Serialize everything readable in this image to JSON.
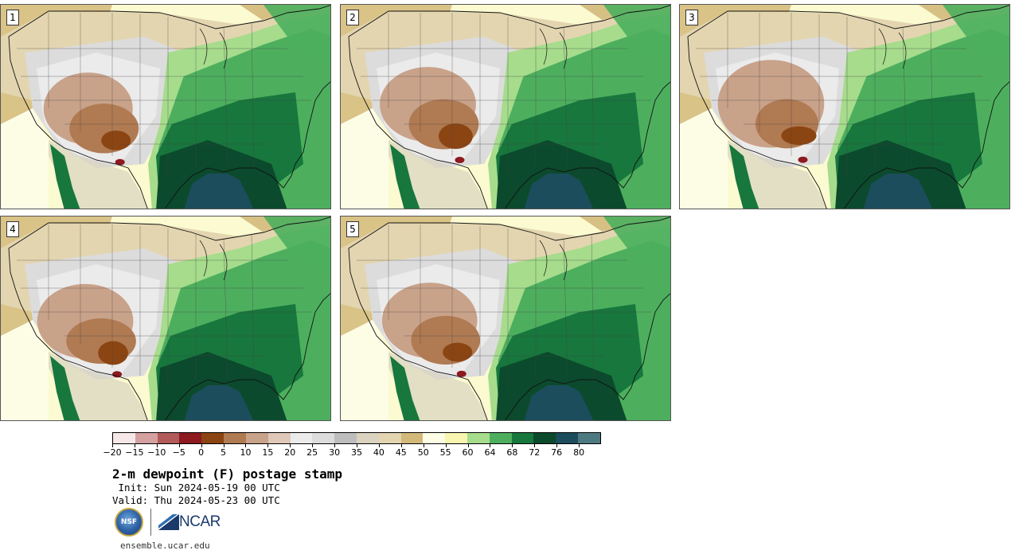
{
  "panels": [
    {
      "id": "panel-1",
      "label": "1"
    },
    {
      "id": "panel-2",
      "label": "2"
    },
    {
      "id": "panel-3",
      "label": "3"
    },
    {
      "id": "panel-4",
      "label": "4"
    },
    {
      "id": "panel-5",
      "label": "5"
    }
  ],
  "colorbar": {
    "colors": [
      "#f6e8e8",
      "#d4a0a0",
      "#b25a5a",
      "#8c1a1f",
      "#8b4513",
      "#b07a52",
      "#c9a28a",
      "#e0c8b8",
      "#ebebeb",
      "#dcdcdc",
      "#bdbdbd",
      "#d9d3bf",
      "#e3d5b0",
      "#d2b97a",
      "#fdfde6",
      "#f7f5b0",
      "#a6dc8c",
      "#4daf5e",
      "#17773d",
      "#0b4a2c",
      "#1c4d5c",
      "#4d7a80"
    ],
    "tick_labels": [
      "−20",
      "−15",
      "−10",
      "−5",
      "0",
      "5",
      "10",
      "15",
      "20",
      "25",
      "30",
      "35",
      "40",
      "45",
      "50",
      "55",
      "60",
      "64",
      "68",
      "72",
      "76",
      "80"
    ]
  },
  "title": "2-m dewpoint (F) postage stamp",
  "init": " Init: Sun 2024-05-19 00 UTC",
  "valid": "Valid: Thu 2024-05-23 00 UTC",
  "logos": {
    "nsf": "NSF",
    "ncar": "NCAR"
  },
  "website": "ensemble.ucar.edu"
}
